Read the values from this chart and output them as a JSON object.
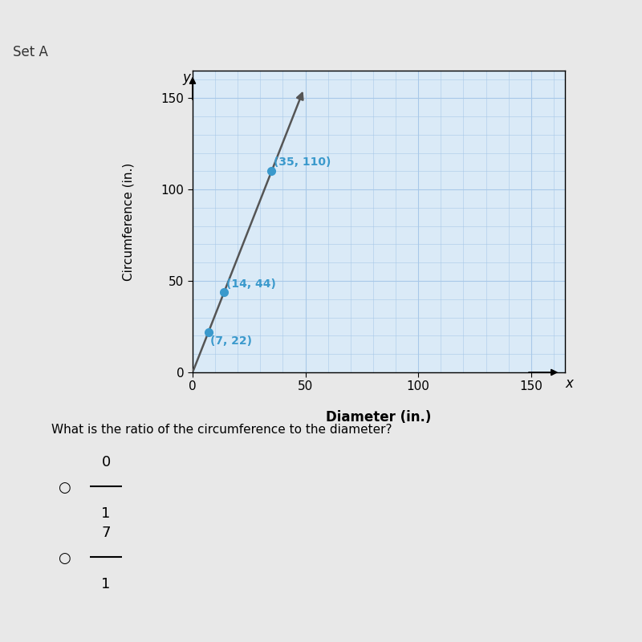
{
  "title_label": "Set A",
  "title_bar_color": "#5ab3e0",
  "page_background": "#e8e8e8",
  "white_card_color": "#f0f0f0",
  "plot_background_color": "#daeaf7",
  "grid_color": "#a8c8e8",
  "points": [
    [
      7,
      22
    ],
    [
      14,
      44
    ],
    [
      35,
      110
    ]
  ],
  "point_color": "#3a99cc",
  "arrow_line_color": "#555555",
  "xlabel": "Diameter (in.)",
  "ylabel": "Circumference (in.)",
  "xlim": [
    0,
    165
  ],
  "ylim": [
    0,
    165
  ],
  "xticks": [
    0,
    50,
    100,
    150
  ],
  "yticks": [
    0,
    50,
    100,
    150
  ],
  "point_labels": [
    "(35, 110)",
    "(14, 44)",
    "(7, 22)"
  ],
  "point_label_color": "#3a99cc",
  "question_text": "What is the ratio of the circumference to the diameter?",
  "option1_num": "0",
  "option1_den": "1",
  "option2_num": "7",
  "option2_den": "1"
}
